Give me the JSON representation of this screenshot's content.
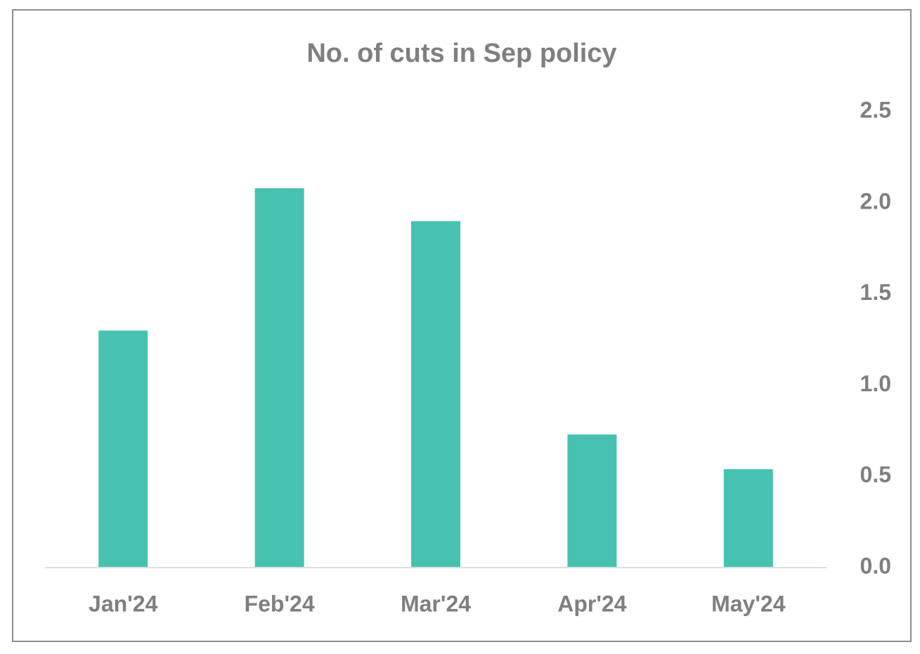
{
  "chart_data": {
    "type": "bar",
    "title": "No. of cuts in Sep policy",
    "categories": [
      "Jan'24",
      "Feb'24",
      "Mar'24",
      "Apr'24",
      "May'24"
    ],
    "values": [
      1.3,
      2.08,
      1.9,
      0.73,
      0.54
    ],
    "color": "#47c2b1",
    "ylim": [
      0,
      2.5
    ],
    "yticks": [
      {
        "value": 0,
        "label": "0.0"
      },
      0.5,
      {
        "value": 1,
        "label": "1.0"
      },
      1.5,
      {
        "value": 2,
        "label": "2.0"
      },
      2.5
    ],
    "y_axis_side": "right",
    "grid": false
  }
}
